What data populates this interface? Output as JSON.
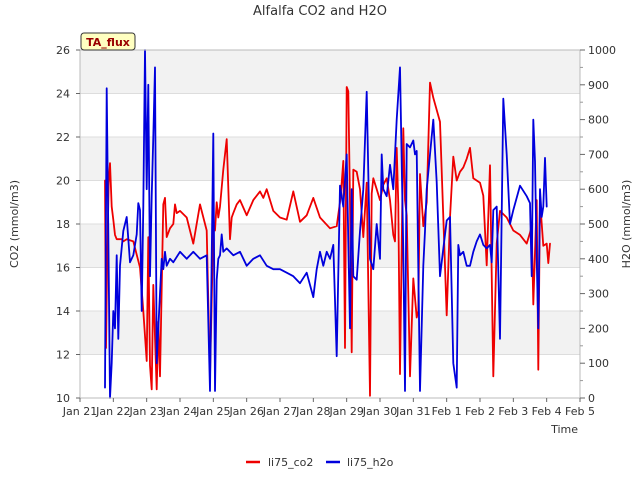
{
  "chart_data": {
    "type": "line",
    "title": "Alfalfa CO2 and H2O",
    "xlabel": "Time",
    "ylabel": "CO2 (mmol/m3)",
    "y2label": "H2O (mmol/m3)",
    "badge": "TA_flux",
    "x_tick_labels": [
      "Jan 21",
      "Jan 22",
      "Jan 23",
      "Jan 24",
      "Jan 25",
      "Jan 26",
      "Jan 27",
      "Jan 28",
      "Jan 29",
      "Jan 30",
      "Jan 31",
      "Feb 1",
      "Feb 2",
      "Feb 3",
      "Feb 4",
      "Feb 5"
    ],
    "xlim": [
      0,
      15
    ],
    "ylim": [
      10,
      26
    ],
    "y_ticks": [
      10,
      12,
      14,
      16,
      18,
      20,
      22,
      24,
      26
    ],
    "y2lim": [
      0,
      1000
    ],
    "y2_ticks": [
      0,
      100,
      200,
      300,
      400,
      500,
      600,
      700,
      800,
      900,
      1000
    ],
    "grid": "horizontal bands",
    "legend_position": "bottom-center",
    "series": [
      {
        "name": "li75_co2",
        "axis": "left",
        "color": "#ee0000",
        "x": [
          0.75,
          0.78,
          0.82,
          0.86,
          0.9,
          0.95,
          1.0,
          1.05,
          1.1,
          1.15,
          1.2,
          1.25,
          1.3,
          1.4,
          1.6,
          1.8,
          1.9,
          2.0,
          2.05,
          2.1,
          2.15,
          2.2,
          2.3,
          2.35,
          2.4,
          2.5,
          2.55,
          2.6,
          2.7,
          2.8,
          2.85,
          2.9,
          3.0,
          3.2,
          3.4,
          3.6,
          3.8,
          3.9,
          4.0,
          4.05,
          4.1,
          4.15,
          4.2,
          4.3,
          4.4,
          4.5,
          4.55,
          4.6,
          4.7,
          4.8,
          5.0,
          5.2,
          5.4,
          5.5,
          5.6,
          5.8,
          6.0,
          6.2,
          6.4,
          6.6,
          6.8,
          7.0,
          7.2,
          7.5,
          7.7,
          7.8,
          7.85,
          7.9,
          7.95,
          8.0,
          8.05,
          8.1,
          8.15,
          8.2,
          8.3,
          8.4,
          8.5,
          8.6,
          8.7,
          8.75,
          8.8,
          8.9,
          9.0,
          9.1,
          9.2,
          9.3,
          9.4,
          9.45,
          9.5,
          9.55,
          9.6,
          9.7,
          9.75,
          9.8,
          9.9,
          10.0,
          10.1,
          10.15,
          10.2,
          10.3,
          10.4,
          10.5,
          10.6,
          10.8,
          11.0,
          11.1,
          11.2,
          11.3,
          11.4,
          11.5,
          11.6,
          11.7,
          11.8,
          12.0,
          12.1,
          12.2,
          12.3,
          12.4,
          12.5,
          12.6,
          12.8,
          13.0,
          13.2,
          13.4,
          13.5,
          13.55,
          13.6,
          13.7,
          13.75,
          13.8,
          13.9,
          14.0,
          14.05,
          14.1
        ],
        "values": [
          20.0,
          12.3,
          16.7,
          19.9,
          20.8,
          18.8,
          18.2,
          17.5,
          17.3,
          17.3,
          17.3,
          17.3,
          17.2,
          17.3,
          17.2,
          16.0,
          14.0,
          11.7,
          17.4,
          11.5,
          10.4,
          15.2,
          10.4,
          13.5,
          11.0,
          18.9,
          19.2,
          17.4,
          17.8,
          18.0,
          18.9,
          18.5,
          18.6,
          18.3,
          17.1,
          18.9,
          17.7,
          11.0,
          17.8,
          17.7,
          19.0,
          18.3,
          18.8,
          20.5,
          21.9,
          17.3,
          18.3,
          18.5,
          18.9,
          19.1,
          18.4,
          19.1,
          19.5,
          19.2,
          19.6,
          18.6,
          18.3,
          18.2,
          19.5,
          18.1,
          18.4,
          19.2,
          18.3,
          17.8,
          17.9,
          19.0,
          19.9,
          20.9,
          12.3,
          24.3,
          24.1,
          19.0,
          12.1,
          20.5,
          20.4,
          19.6,
          17.4,
          19.9,
          10.1,
          19.4,
          20.1,
          19.6,
          19.1,
          19.8,
          20.1,
          19.1,
          17.5,
          17.2,
          21.5,
          18.9,
          11.1,
          22.4,
          19.1,
          18.4,
          11.0,
          15.5,
          13.7,
          14.0,
          20.3,
          17.9,
          19.0,
          24.5,
          23.8,
          22.7,
          13.8,
          18.3,
          21.1,
          20.0,
          20.4,
          20.6,
          21.0,
          21.5,
          20.1,
          19.9,
          19.3,
          16.1,
          20.7,
          11.0,
          17.1,
          18.6,
          18.3,
          17.7,
          17.5,
          17.1,
          17.6,
          17.9,
          14.3,
          19.1,
          11.3,
          19.1,
          17.0,
          17.1,
          16.2,
          17.1
        ]
      },
      {
        "name": "li75_h2o",
        "axis": "right",
        "color": "#0000dd",
        "x": [
          0.75,
          0.8,
          0.85,
          0.9,
          0.95,
          1.0,
          1.05,
          1.1,
          1.15,
          1.2,
          1.3,
          1.4,
          1.5,
          1.6,
          1.7,
          1.75,
          1.8,
          1.85,
          1.9,
          1.95,
          2.0,
          2.05,
          2.1,
          2.15,
          2.2,
          2.25,
          2.3,
          2.35,
          2.4,
          2.45,
          2.5,
          2.55,
          2.6,
          2.7,
          2.8,
          3.0,
          3.2,
          3.4,
          3.6,
          3.8,
          3.9,
          4.0,
          4.05,
          4.1,
          4.15,
          4.2,
          4.25,
          4.3,
          4.4,
          4.6,
          4.8,
          5.0,
          5.2,
          5.4,
          5.6,
          5.8,
          6.0,
          6.2,
          6.4,
          6.6,
          6.8,
          7.0,
          7.1,
          7.2,
          7.3,
          7.4,
          7.5,
          7.6,
          7.7,
          7.8,
          7.9,
          8.0,
          8.05,
          8.1,
          8.15,
          8.2,
          8.3,
          8.4,
          8.5,
          8.6,
          8.7,
          8.8,
          8.9,
          9.0,
          9.05,
          9.1,
          9.2,
          9.3,
          9.4,
          9.5,
          9.6,
          9.7,
          9.75,
          9.8,
          9.9,
          10.0,
          10.05,
          10.1,
          10.2,
          10.3,
          10.35,
          10.4,
          10.5,
          10.6,
          10.7,
          10.8,
          11.0,
          11.1,
          11.2,
          11.3,
          11.35,
          11.4,
          11.5,
          11.6,
          11.7,
          11.8,
          11.9,
          12.0,
          12.1,
          12.2,
          12.3,
          12.35,
          12.4,
          12.5,
          12.6,
          12.7,
          12.8,
          12.9,
          13.0,
          13.2,
          13.4,
          13.5,
          13.55,
          13.6,
          13.65,
          13.7,
          13.75,
          13.8,
          13.85,
          13.9,
          13.95,
          14.0
        ],
        "values": [
          30,
          890,
          480,
          0,
          100,
          250,
          200,
          410,
          170,
          380,
          480,
          520,
          390,
          410,
          470,
          560,
          540,
          250,
          550,
          1000,
          600,
          900,
          350,
          580,
          750,
          950,
          100,
          200,
          300,
          400,
          370,
          420,
          380,
          400,
          390,
          420,
          400,
          420,
          400,
          410,
          20,
          760,
          20,
          340,
          400,
          410,
          470,
          420,
          430,
          410,
          420,
          380,
          400,
          410,
          380,
          370,
          370,
          360,
          350,
          330,
          360,
          290,
          370,
          420,
          380,
          420,
          400,
          440,
          120,
          610,
          550,
          700,
          450,
          200,
          600,
          350,
          340,
          480,
          600,
          880,
          400,
          370,
          500,
          400,
          700,
          600,
          580,
          670,
          600,
          800,
          950,
          420,
          20,
          730,
          720,
          740,
          700,
          710,
          20,
          380,
          480,
          600,
          700,
          800,
          620,
          350,
          510,
          520,
          100,
          30,
          440,
          410,
          420,
          380,
          380,
          420,
          450,
          470,
          440,
          430,
          440,
          390,
          540,
          550,
          170,
          860,
          700,
          500,
          540,
          610,
          580,
          560,
          350,
          800,
          680,
          400,
          200,
          600,
          520,
          550,
          690,
          550
        ]
      }
    ]
  }
}
